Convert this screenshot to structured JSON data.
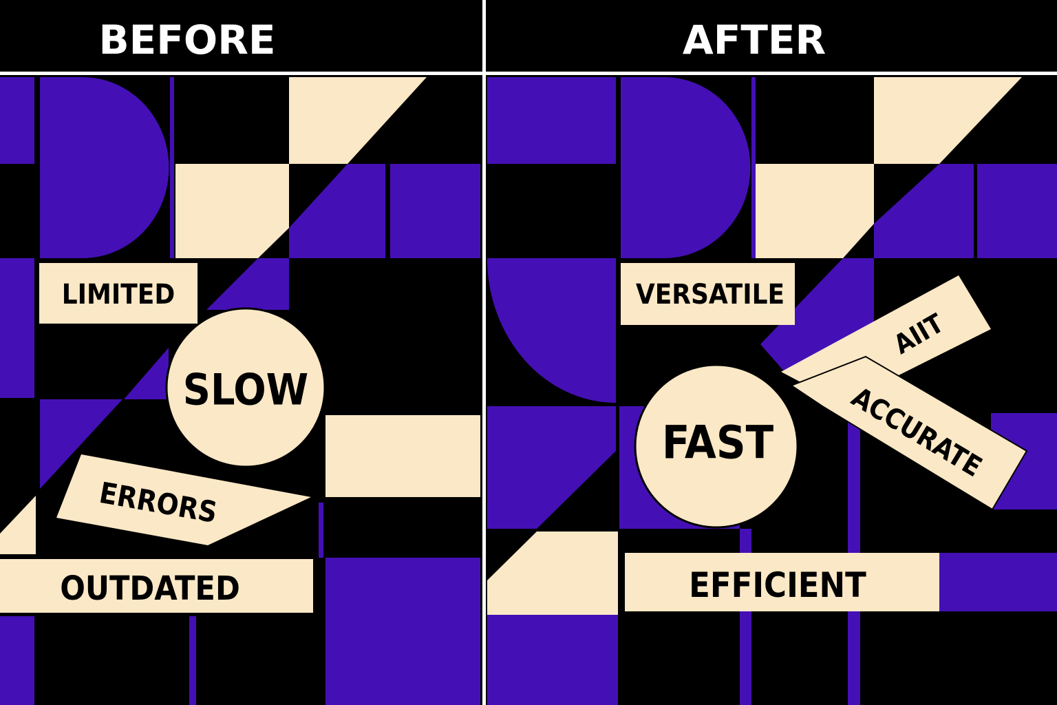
{
  "colors": {
    "purple": "#4410b5",
    "cream": "#fbe8c6",
    "black": "#000000",
    "divider": "#ffffff"
  },
  "before": {
    "title": "BEFORE",
    "labels": {
      "limited": "LIMITED",
      "slow": "SLOW",
      "errors": "ERRORS",
      "outdated": "OUTDATED"
    }
  },
  "after": {
    "title": "AFTER",
    "labels": {
      "versatile": "VERSATILE",
      "fast": "FAST",
      "aiit": "AIIT",
      "accurate": "ACCURATE",
      "efficient": "EFFICIENT"
    }
  }
}
